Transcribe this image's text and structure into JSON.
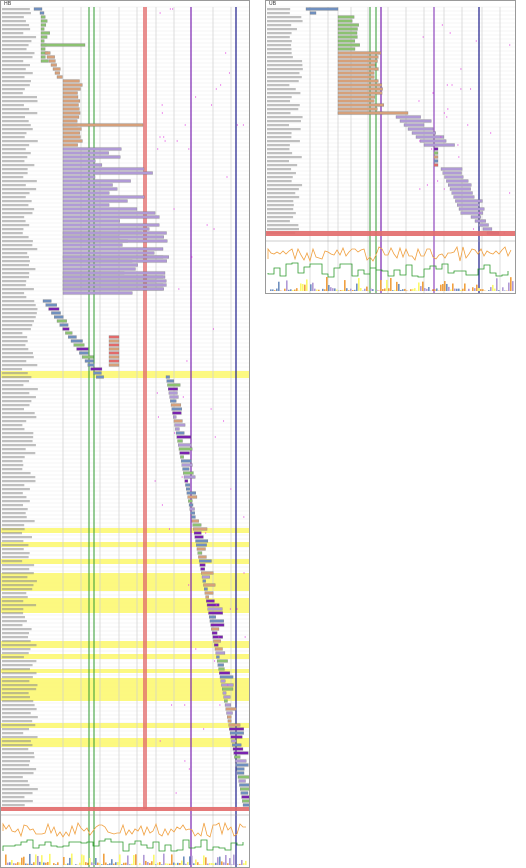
{
  "panels": {
    "left": {
      "title": "HB"
    },
    "right": {
      "title": "UB"
    }
  },
  "colors": {
    "blue": "#6f8fbf",
    "green": "#8cc271",
    "tan": "#d6a07a",
    "purple": "#b09ad6",
    "yellow": "#fbf86a",
    "red": "#e26a6a",
    "orange": "#f0a040",
    "navy": "#1a1a8a",
    "violet": "#7a22b0",
    "darkgreen": "#2e9a2e",
    "magenta": "#e040e0"
  }
}
